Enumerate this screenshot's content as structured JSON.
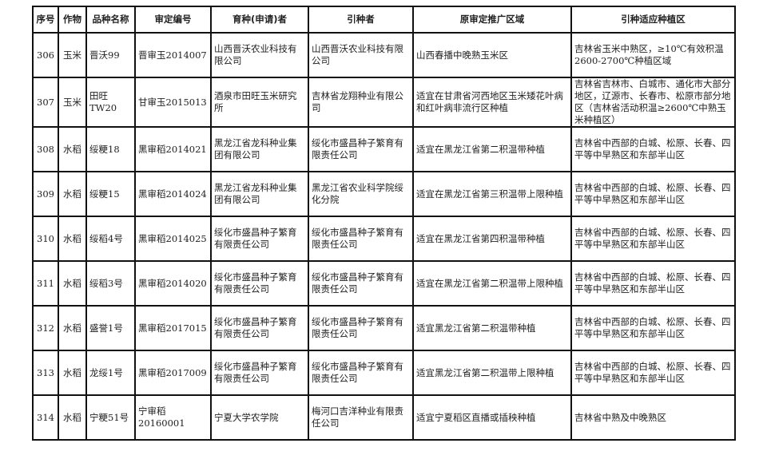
{
  "headers": [
    "序号",
    "作物",
    "品种名称",
    "审定编号",
    "育种(申请)者",
    "引种者",
    "原审定推广区域",
    "引种适应种植区"
  ],
  "rows": [
    {
      "no": "306",
      "crop": "玉米",
      "variety": "晋沃99",
      "code": "晋审玉2014007",
      "breeder": "山西晋沃农业科技有限公司",
      "introducer": "山西晋沃农业科技有限公司",
      "orig_region": "山西春播中晚熟玉米区",
      "adapt_region": "吉林省玉米中熟区，≥10℃有效积温2600-2700℃种植区域"
    },
    {
      "no": "307",
      "crop": "玉米",
      "variety": "田旺TW20",
      "code": "甘审玉2015013",
      "breeder": "酒泉市田旺玉米研究所",
      "introducer": "吉林省龙翔种业有限公司",
      "orig_region": "适宜在甘肃省河西地区玉米矮花叶病和红叶病非流行区种植",
      "adapt_region": "吉林省吉林市、白城市、通化市大部分地区，辽源市、长春市、松原市部分地区（吉林省活动积温≥2600℃中熟玉米种植区）"
    },
    {
      "no": "308",
      "crop": "水稻",
      "variety": "绥粳18",
      "code": "黑审稻2014021",
      "breeder": "黑龙江省龙科种业集团有限公司",
      "introducer": "绥化市盛昌种子繁育有限责任公司",
      "orig_region": "适宜在黑龙江省第二积温带种植",
      "adapt_region": "吉林省中西部的白城、松原、长春、四平等中早熟区和东部半山区"
    },
    {
      "no": "309",
      "crop": "水稻",
      "variety": "绥粳15",
      "code": "黑审稻2014024",
      "breeder": "黑龙江省龙科种业集团有限公司",
      "introducer": "黑龙江省农业科学院绥化分院",
      "orig_region": "适宜在黑龙江省第三积温带上限种植",
      "adapt_region": "吉林省中西部的白城、松原、长春、四平等中早熟区和东部半山区"
    },
    {
      "no": "310",
      "crop": "水稻",
      "variety": "绥稻4号",
      "code": "黑审稻2014025",
      "breeder": "绥化市盛昌种子繁育有限责任公司",
      "introducer": "绥化市盛昌种子繁育有限责任公司",
      "orig_region": "适宜在黑龙江省第四积温带种植",
      "adapt_region": "吉林省中西部的白城、松原、长春、四平等中早熟区和东部半山区"
    },
    {
      "no": "311",
      "crop": "水稻",
      "variety": "绥稻3号",
      "code": "黑审稻2014020",
      "breeder": "绥化市盛昌种子繁育有限责任公司",
      "introducer": "绥化市盛昌种子繁育有限责任公司",
      "orig_region": "适宜在黑龙江省第二积温带上限种植",
      "adapt_region": "吉林省中西部的白城、松原、长春、四平等中早熟区和东部半山区"
    },
    {
      "no": "312",
      "crop": "水稻",
      "variety": "盛誉1号",
      "code": "黑审稻2017015",
      "breeder": "绥化市盛昌种子繁育有限责任公司",
      "introducer": "绥化市盛昌种子繁育有限责任公司",
      "orig_region": "适宜黑龙江省第二积温带种植",
      "adapt_region": "吉林省中西部的白城、松原、长春、四平等中早熟区和东部半山区"
    },
    {
      "no": "313",
      "crop": "水稻",
      "variety": "龙绥1号",
      "code": "黑审稻2017009",
      "breeder": "绥化市盛昌种子繁育有限责任公司",
      "introducer": "绥化市盛昌种子繁育有限责任公司",
      "orig_region": "适宜黑龙江省第二积温带上限种植",
      "adapt_region": "吉林省中西部的白城、松原、长春、四平等中早熟区和东部半山区"
    },
    {
      "no": "314",
      "crop": "水稻",
      "variety": "宁粳51号",
      "code": "宁审稻20160001",
      "breeder": "宁夏大学农学院",
      "introducer": "梅河口吉洋种业有限责任公司",
      "orig_region": "适宜宁夏稻区直播或插秧种植",
      "adapt_region": "吉林省中熟及中晚熟区"
    }
  ]
}
